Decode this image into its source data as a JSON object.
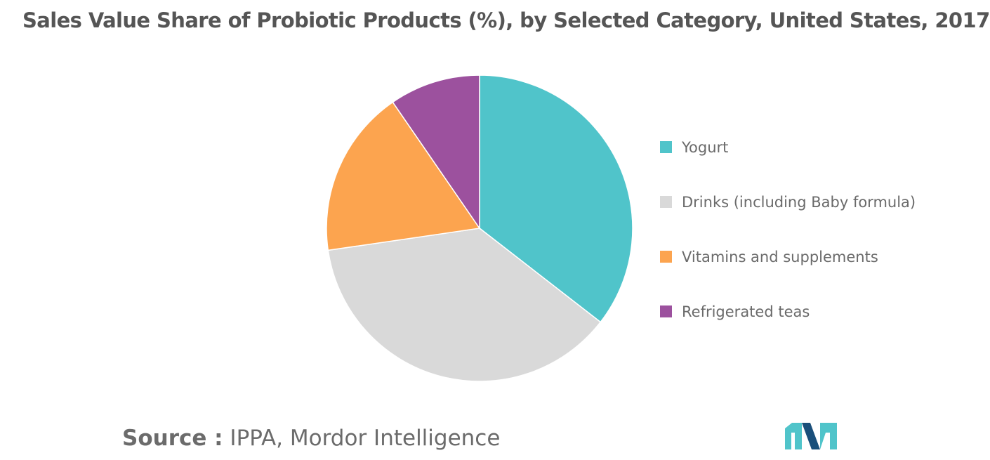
{
  "chart_data": {
    "type": "pie",
    "title": "Sales Value Share of Probiotic Products (%), by Selected Category, United States, 2017",
    "slices": [
      {
        "label": "Yogurt",
        "value": 35.5,
        "color": "#50c4ca"
      },
      {
        "label": "Drinks (including Baby formula)",
        "value": 37.2,
        "color": "#d9d9d9"
      },
      {
        "label": "Vitamins and supplements",
        "value": 17.7,
        "color": "#fca44f"
      },
      {
        "label": "Refrigerated teas",
        "value": 9.6,
        "color": "#9c519e"
      }
    ],
    "legend_position": "right"
  },
  "source": {
    "prefix": "Source :",
    "text": " IPPA, Mordor Intelligence"
  },
  "logo": {
    "colors": [
      "#50c4ca",
      "#1a4f7a"
    ]
  }
}
